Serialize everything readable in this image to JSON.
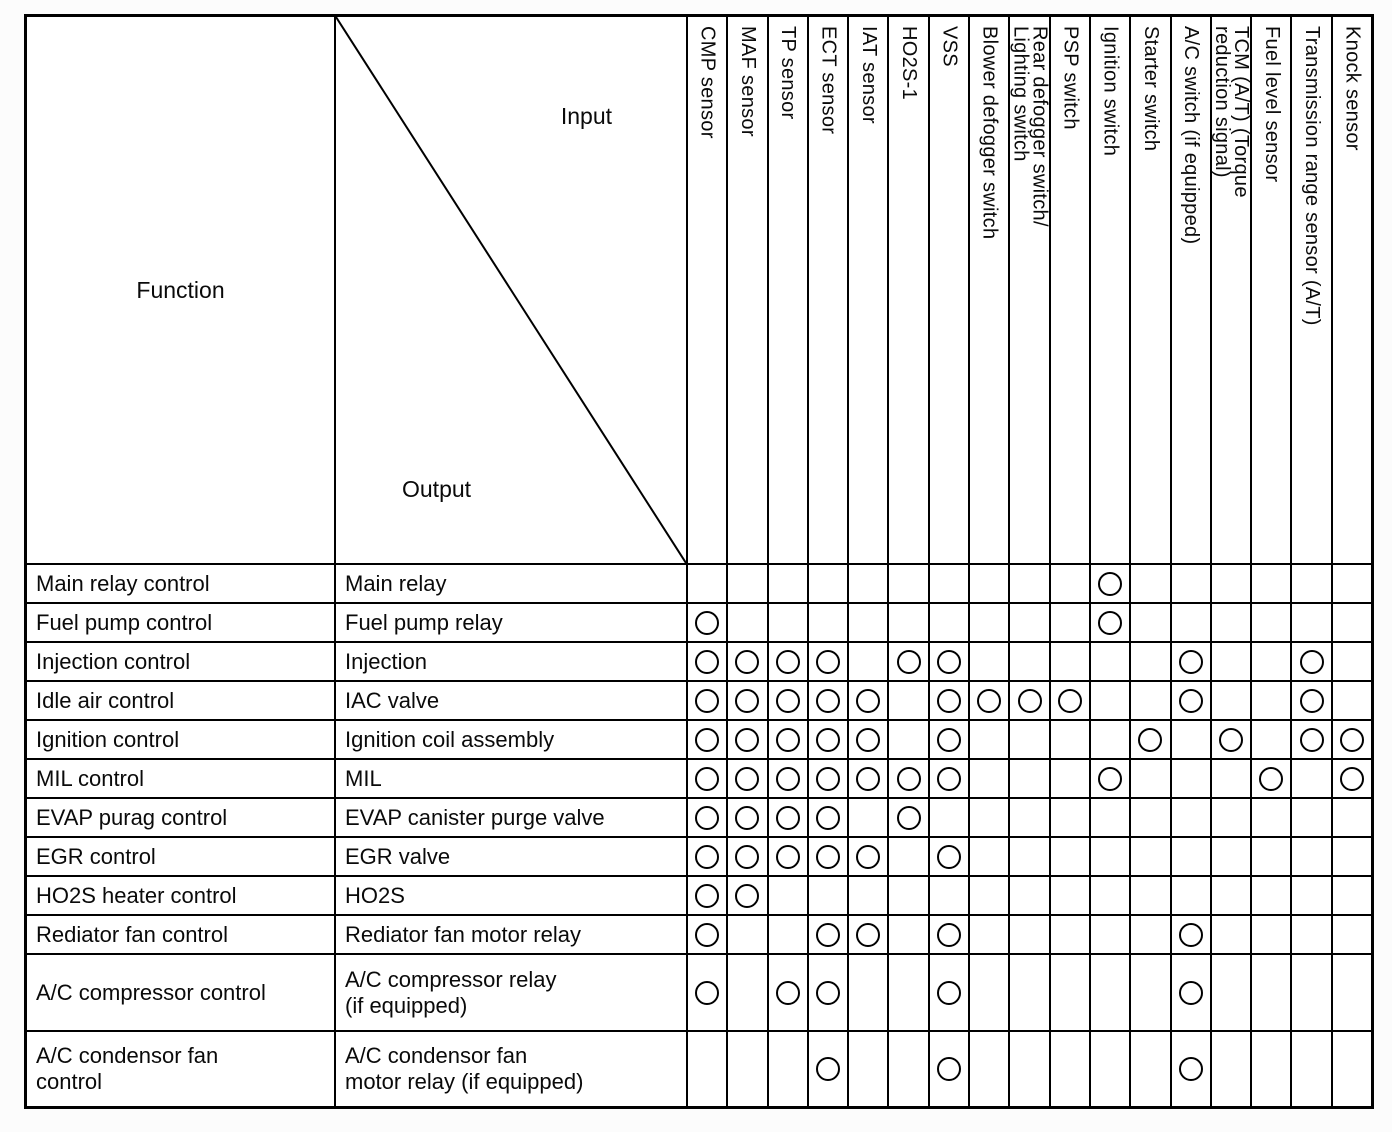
{
  "header": {
    "function_label": "Function",
    "input_label": "Input",
    "output_label": "Output"
  },
  "columns": [
    "CMP sensor",
    "MAF sensor",
    "TP sensor",
    "ECT sensor",
    "IAT sensor",
    "HO2S-1",
    "VSS",
    "Blower defogger switch",
    "Rear defogger switch/\nLighting switch",
    "PSP switch",
    "Ignition switch",
    "Starter switch",
    "A/C switch (if equipped)",
    "TCM (A/T) (Torque\nreduction signal)",
    "Fuel level sensor",
    "Transmission range sensor (A/T)",
    "Knock sensor"
  ],
  "mark_symbol": "circle",
  "rows": [
    {
      "function": "Main relay control",
      "output": "Main relay",
      "inputs": [
        11
      ]
    },
    {
      "function": "Fuel pump control",
      "output": "Fuel pump relay",
      "inputs": [
        1,
        11
      ]
    },
    {
      "function": "Injection control",
      "output": "Injection",
      "inputs": [
        1,
        2,
        3,
        4,
        6,
        7,
        13,
        16
      ]
    },
    {
      "function": "Idle air control",
      "output": "IAC valve",
      "inputs": [
        1,
        2,
        3,
        4,
        5,
        7,
        8,
        9,
        10,
        13,
        16
      ]
    },
    {
      "function": "Ignition control",
      "output": "Ignition coil assembly",
      "inputs": [
        1,
        2,
        3,
        4,
        5,
        7,
        12,
        14,
        16,
        17
      ]
    },
    {
      "function": "MIL control",
      "output": "MIL",
      "inputs": [
        1,
        2,
        3,
        4,
        5,
        6,
        7,
        11,
        15,
        17
      ]
    },
    {
      "function": "EVAP purag control",
      "output": "EVAP canister purge valve",
      "inputs": [
        1,
        2,
        3,
        4,
        6
      ]
    },
    {
      "function": "EGR control",
      "output": "EGR valve",
      "inputs": [
        1,
        2,
        3,
        4,
        5,
        7
      ]
    },
    {
      "function": "HO2S heater control",
      "output": "HO2S",
      "inputs": [
        1,
        2
      ]
    },
    {
      "function": "Rediator fan control",
      "output": "Rediator fan motor relay",
      "inputs": [
        1,
        4,
        5,
        7,
        13
      ]
    },
    {
      "function": "A/C compressor control",
      "output": "A/C compressor relay\n(if equipped)",
      "inputs": [
        1,
        3,
        4,
        7,
        13
      ]
    },
    {
      "function": "A/C condensor fan\ncontrol",
      "output": "A/C condensor fan\nmotor relay (if equipped)",
      "inputs": [
        4,
        7,
        13
      ]
    }
  ]
}
